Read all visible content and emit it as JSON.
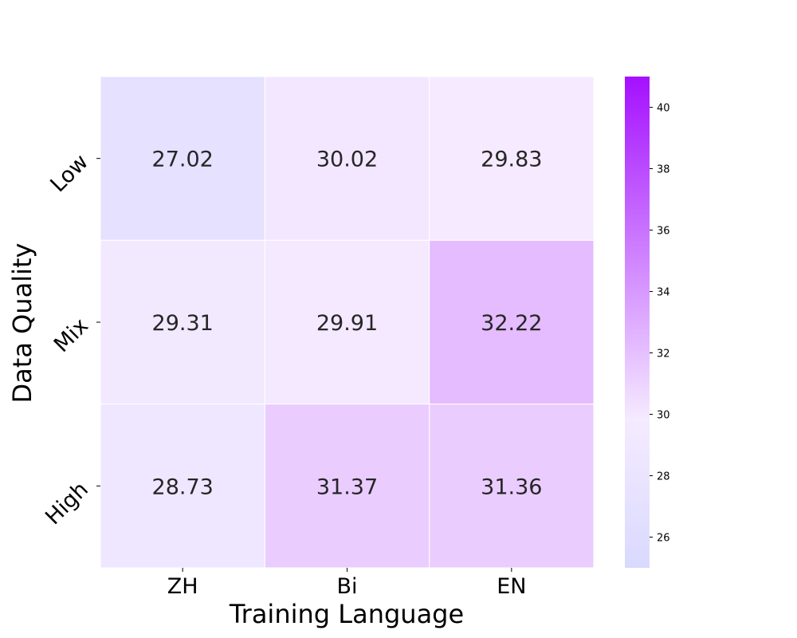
{
  "chart_data": {
    "type": "heatmap",
    "xlabel": "Training Language",
    "ylabel": "Data Quality",
    "x_categories": [
      "ZH",
      "Bi",
      "EN"
    ],
    "y_categories": [
      "Low",
      "Mix",
      "High"
    ],
    "values": [
      [
        27.02,
        30.02,
        29.83
      ],
      [
        29.31,
        29.91,
        32.22
      ],
      [
        28.73,
        31.37,
        31.36
      ]
    ],
    "colorbar": {
      "range": [
        25,
        41
      ],
      "ticks": [
        26,
        28,
        30,
        32,
        34,
        36,
        38,
        40
      ],
      "colors": {
        "low": "#d9d9ff",
        "mid": "#f5ebff",
        "high": "#a510ff"
      }
    },
    "annotation_color": "#262626",
    "cell_border_color": "#ffffff"
  }
}
